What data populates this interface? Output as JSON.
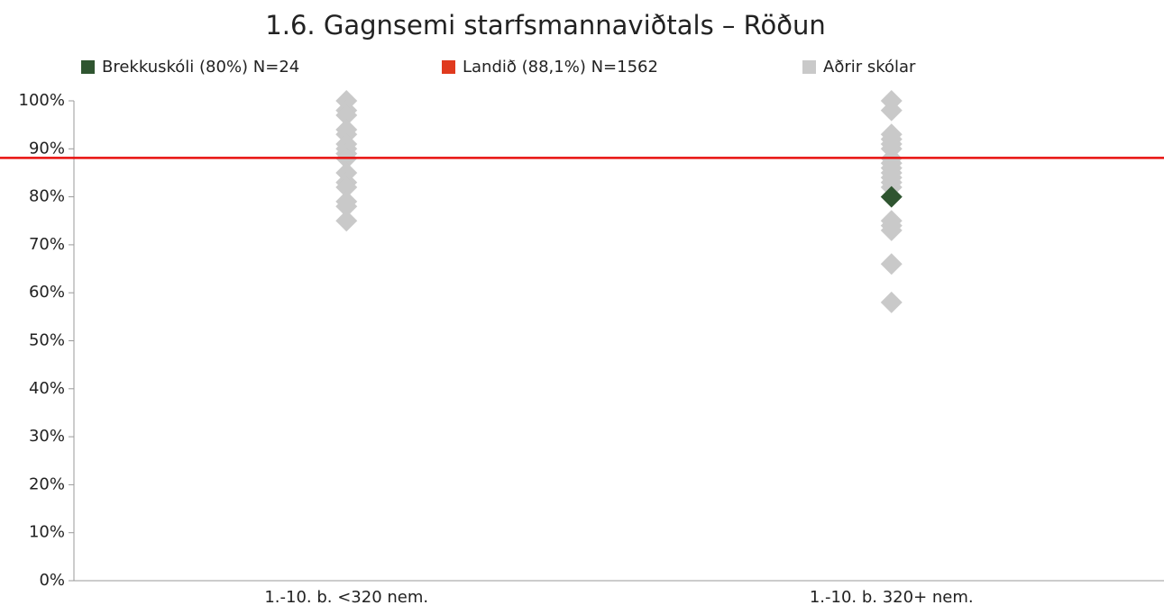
{
  "chart_data": {
    "type": "scatter",
    "title": "1.6. Gagnsemi starfsmannaviðtals – Röðun",
    "categories": [
      "1.-10. b. <320 nem.",
      "1.-10. b. 320+ nem."
    ],
    "ylim": [
      0,
      100
    ],
    "yticks": [
      {
        "value": 0,
        "label": "0%"
      },
      {
        "value": 10,
        "label": "10%"
      },
      {
        "value": 20,
        "label": "20%"
      },
      {
        "value": 30,
        "label": "30%"
      },
      {
        "value": 40,
        "label": "40%"
      },
      {
        "value": 50,
        "label": "50%"
      },
      {
        "value": 60,
        "label": "60%"
      },
      {
        "value": 70,
        "label": "70%"
      },
      {
        "value": 80,
        "label": "80%"
      },
      {
        "value": 90,
        "label": "90%"
      },
      {
        "value": 100,
        "label": "100%"
      }
    ],
    "series": [
      {
        "name": "Brekkuskóli (80%) N=24",
        "color": "#2f5530",
        "values": [
          null,
          80
        ]
      },
      {
        "name": "Landið (88,1%) N=1562",
        "color": "#e03a1e",
        "line_color": "#e8100e",
        "type": "line",
        "value": 88.1
      },
      {
        "name": "Aðrir skólar",
        "color": "#c9c9c9",
        "values": [
          [
            100,
            98,
            97,
            94,
            93,
            91,
            90,
            89,
            88,
            85,
            83,
            82,
            79,
            78,
            75
          ],
          [
            100,
            98,
            93,
            92,
            91,
            90,
            88,
            87,
            86,
            85,
            84,
            83,
            82,
            75,
            74,
            73,
            66,
            58
          ]
        ]
      }
    ]
  }
}
